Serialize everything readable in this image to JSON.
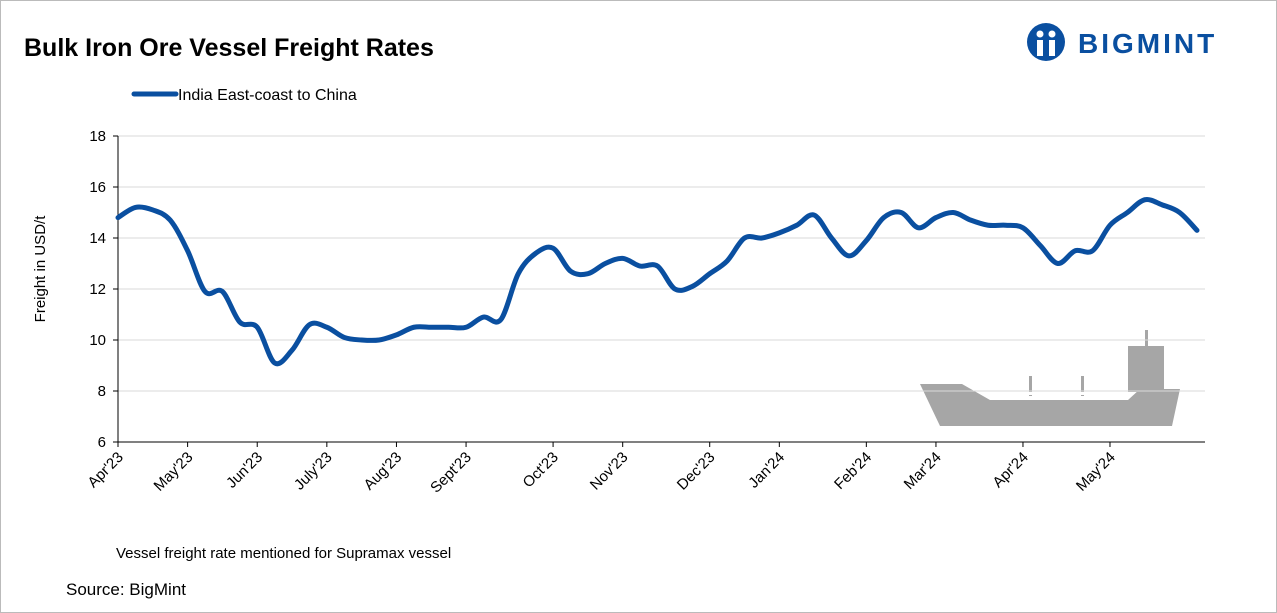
{
  "logo": "BIGMINT",
  "chart_data": {
    "type": "line",
    "title": "Bulk Iron Ore Vessel Freight Rates",
    "y_label": "Freight  in USD/t",
    "note": "Vessel freight rate mentioned for Supramax vessel",
    "source": "Source: BigMint",
    "categories": [
      "Apr'23",
      null,
      null,
      null,
      "May'23",
      null,
      null,
      null,
      "Jun'23",
      null,
      null,
      null,
      "July'23",
      null,
      null,
      null,
      "Aug'23",
      null,
      null,
      null,
      "Sept'23",
      null,
      null,
      null,
      null,
      "Oct'23",
      null,
      null,
      null,
      "Nov'23",
      null,
      null,
      null,
      null,
      "Dec'23",
      null,
      null,
      null,
      "Jan'24",
      null,
      null,
      null,
      null,
      "Feb'24",
      null,
      null,
      null,
      "Mar'24",
      null,
      null,
      null,
      null,
      "Apr'24",
      null,
      null,
      null,
      null,
      "May'24",
      null,
      null,
      null,
      null,
      null
    ],
    "series": [
      {
        "name": "India East-coast to China",
        "color": "#0a4fa0",
        "values": [
          14.8,
          15.2,
          15.1,
          14.7,
          13.5,
          11.9,
          11.9,
          10.7,
          10.5,
          9.1,
          9.6,
          10.6,
          10.5,
          10.1,
          10.0,
          10.0,
          10.2,
          10.5,
          10.5,
          10.5,
          10.5,
          10.9,
          10.8,
          12.6,
          13.4,
          13.6,
          12.7,
          12.6,
          13.0,
          13.2,
          12.9,
          12.9,
          12.0,
          12.1,
          12.6,
          13.1,
          14.0,
          14.0,
          14.2,
          14.5,
          14.9,
          14.0,
          13.3,
          13.9,
          14.8,
          15.0,
          14.4,
          14.8,
          15.0,
          14.7,
          14.5,
          14.5,
          14.4,
          13.7,
          13.0,
          13.5,
          13.5,
          14.5,
          15.0,
          15.5,
          15.3,
          15.0,
          14.3
        ]
      }
    ],
    "ylim": [
      6,
      18
    ],
    "yticks": [
      6,
      8,
      10,
      12,
      14,
      16,
      18
    ],
    "grid": true,
    "legend": "top-left"
  }
}
